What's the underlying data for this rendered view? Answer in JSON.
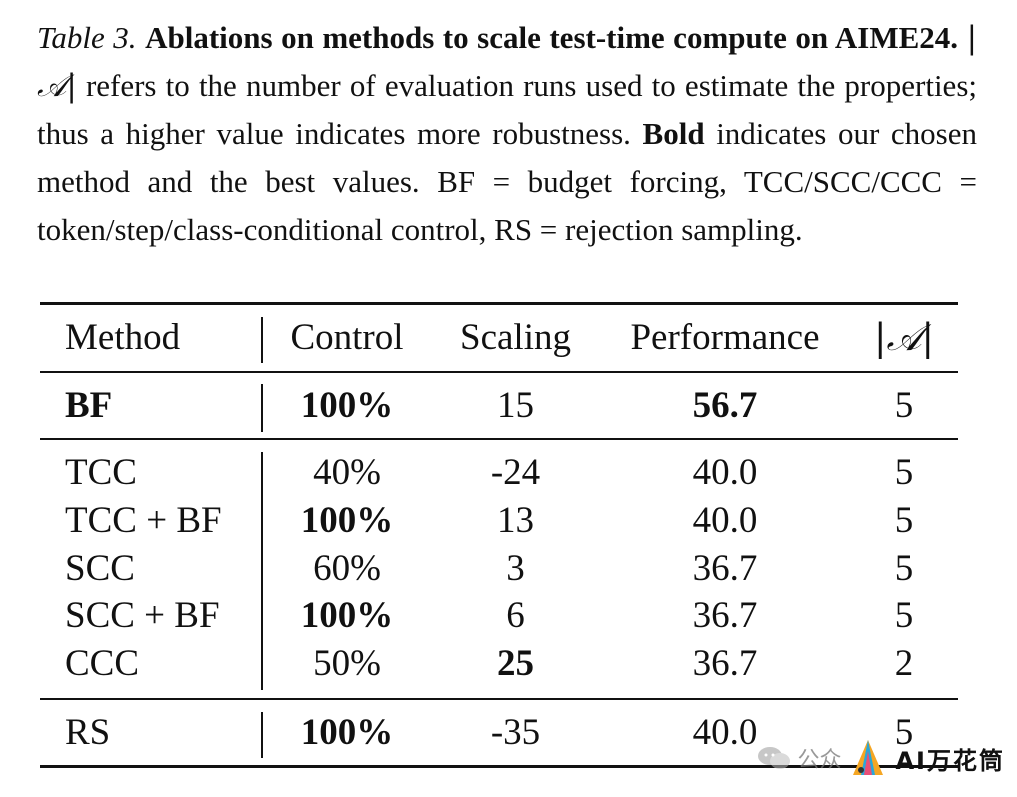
{
  "caption": {
    "label": "Table 3.",
    "title": "Ablations on methods to scale test-time compute on AIME24.",
    "set_symbol": "|𝒜|",
    "text1": " refers to the number of evaluation runs used to estimate the properties; thus a higher value indicates more robustness. ",
    "bold_word": "Bold",
    "text2": " indicates our chosen method and the best values. BF = budget forcing, TCC/SCC/CCC = token/step/class-conditional control, RS = rejection sampling."
  },
  "table": {
    "headers": [
      "Method",
      "Control",
      "Scaling",
      "Performance",
      "|𝒜|"
    ],
    "rows": [
      {
        "method": "BF",
        "control": "100%",
        "scaling": "15",
        "performance": "56.7",
        "runs": "5"
      },
      {
        "method": "TCC",
        "control": "40%",
        "scaling": "-24",
        "performance": "40.0",
        "runs": "5"
      },
      {
        "method": "TCC + BF",
        "control": "100%",
        "scaling": "13",
        "performance": "40.0",
        "runs": "5"
      },
      {
        "method": "SCC",
        "control": "60%",
        "scaling": "3",
        "performance": "36.7",
        "runs": "5"
      },
      {
        "method": "SCC + BF",
        "control": "100%",
        "scaling": "6",
        "performance": "36.7",
        "runs": "5"
      },
      {
        "method": "CCC",
        "control": "50%",
        "scaling": "25",
        "performance": "36.7",
        "runs": "2"
      },
      {
        "method": "RS",
        "control": "100%",
        "scaling": "-35",
        "performance": "40.0",
        "runs": "5"
      }
    ]
  },
  "watermark": {
    "prefix": "公众",
    "brand": "AI万花筒",
    "icons": [
      "wechat-icon",
      "kaleidoscope-logo-icon"
    ]
  }
}
